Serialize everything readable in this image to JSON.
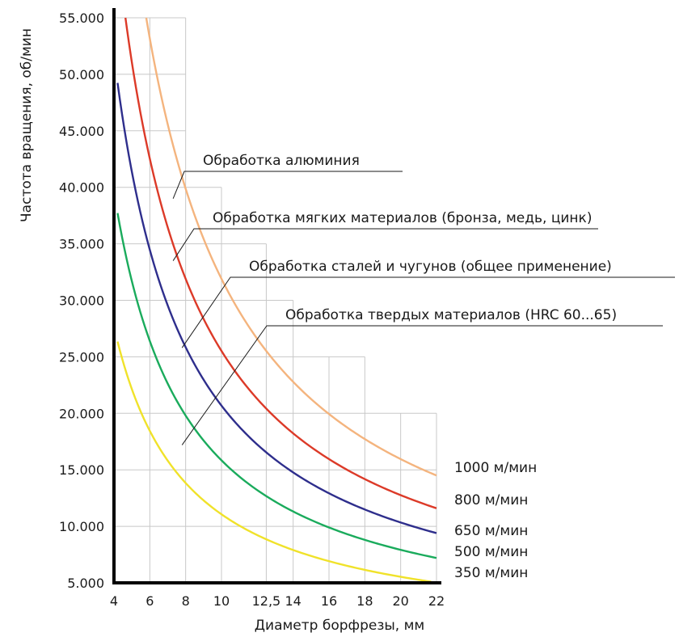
{
  "chart_data": {
    "type": "line",
    "title": "",
    "xlabel": "Диаметр борфрезы, мм",
    "ylabel": "Частота вращения, об/мин",
    "xlim": [
      4,
      22
    ],
    "ylim": [
      5000,
      55000
    ],
    "grid": true,
    "x_ticks": [
      4,
      6,
      8,
      10,
      12.5,
      14,
      16,
      18,
      20,
      22
    ],
    "x_tick_labels": [
      "4",
      "6",
      "8",
      "10",
      "12,5",
      "14",
      "16",
      "18",
      "20",
      "22"
    ],
    "y_ticks": [
      5000,
      10000,
      15000,
      20000,
      25000,
      30000,
      35000,
      40000,
      45000,
      50000,
      55000
    ],
    "y_tick_labels": [
      "5.000",
      "10.000",
      "15.000",
      "20.000",
      "25.000",
      "30.000",
      "35.000",
      "40.000",
      "45.000",
      "50.000",
      "55.000"
    ],
    "series": [
      {
        "name": "1000 м/мин",
        "color": "#f4b47e",
        "x_start": 5.8,
        "x_end": 22,
        "y_at_x_end": 14500
      },
      {
        "name": "800 м/мин",
        "color": "#dc3a28",
        "x_start": 4.6,
        "x_end": 22,
        "y_at_x_end": 11600
      },
      {
        "name": "650 м/мин",
        "color": "#2e2e8c",
        "x_start": 4.2,
        "x_end": 22,
        "y_at_x_end": 9400
      },
      {
        "name": "500 м/мин",
        "color": "#1aab5c",
        "x_start": 4.2,
        "x_end": 22,
        "y_at_x_end": 7200
      },
      {
        "name": "350 м/мин",
        "color": "#f0e22a",
        "x_start": 4.2,
        "x_end": 21.7,
        "y_at_x_end": 5100
      }
    ],
    "annotations": [
      {
        "text": "Обработка алюминия",
        "x": 7.3,
        "y": 39000
      },
      {
        "text": "Обработка мягких материалов (бронза, медь, цинк)",
        "x": 7.3,
        "y": 33500
      },
      {
        "text": "Обработка сталей и чугунов (общее применение)",
        "x": 7.8,
        "y": 25800
      },
      {
        "text": "Обработка твердых материалов (HRC 60...65)",
        "x": 7.8,
        "y": 17200
      }
    ]
  }
}
